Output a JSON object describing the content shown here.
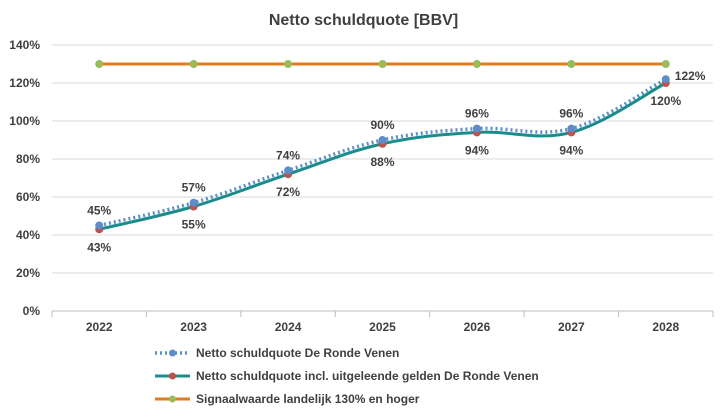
{
  "chart_data": {
    "type": "line",
    "title": "Netto schuldquote [BBV]",
    "xlabel": "",
    "ylabel": "",
    "categories": [
      "2022",
      "2023",
      "2024",
      "2025",
      "2026",
      "2027",
      "2028"
    ],
    "ylim": [
      0,
      140
    ],
    "yticks": [
      0,
      20,
      40,
      60,
      80,
      100,
      120,
      140
    ],
    "ytick_labels": [
      "0%",
      "20%",
      "40%",
      "60%",
      "80%",
      "100%",
      "120%",
      "140%"
    ],
    "grid": "horizontal",
    "legend_position": "bottom",
    "series": [
      {
        "name": "Netto schuldquote De Ronde Venen",
        "values": [
          45,
          57,
          74,
          90,
          96,
          96,
          122
        ],
        "labels": [
          "45%",
          "57%",
          "74%",
          "90%",
          "96%",
          "96%",
          "122%"
        ],
        "color": "#5B8DC9",
        "marker_color": "#5B8DC9",
        "style": "dotted"
      },
      {
        "name": "Netto schuldquote incl. uitgeleende gelden De Ronde Venen",
        "values": [
          43,
          55,
          72,
          88,
          94,
          94,
          120
        ],
        "labels": [
          "43%",
          "55%",
          "72%",
          "88%",
          "94%",
          "94%",
          "120%"
        ],
        "color": "#1B8C8C",
        "marker_color": "#C0504D",
        "style": "solid"
      },
      {
        "name": "Signaalwaarde landelijk 130% en hoger",
        "values": [
          130,
          130,
          130,
          130,
          130,
          130,
          130
        ],
        "labels": [],
        "color": "#E07B1E",
        "marker_color": "#9BBB59",
        "style": "solid"
      }
    ]
  }
}
